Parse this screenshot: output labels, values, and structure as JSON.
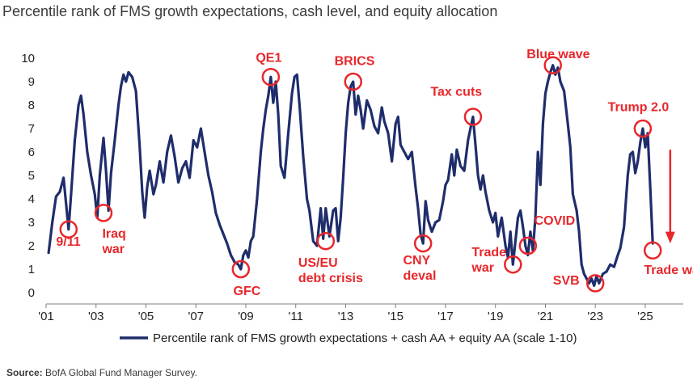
{
  "title": "Percentile rank of FMS growth expectations, cash level, and equity allocation",
  "source_label": "Source:",
  "source_text": " BofA Global Fund Manager Survey.",
  "colors": {
    "series": "#1f2d6b",
    "annotation": "#e8272b",
    "axis": "#7f7f7f"
  },
  "chart_data": {
    "type": "line",
    "ylim": [
      0,
      10
    ],
    "yticks": [
      "0",
      "1",
      "2",
      "3",
      "4",
      "5",
      "6",
      "7",
      "8",
      "9",
      "10"
    ],
    "xlim": [
      2001.0,
      2026.2
    ],
    "xticks": [
      {
        "label": "'01",
        "year": 2001
      },
      {
        "label": "'03",
        "year": 2003
      },
      {
        "label": "'05",
        "year": 2005
      },
      {
        "label": "'07",
        "year": 2007
      },
      {
        "label": "'09",
        "year": 2009
      },
      {
        "label": "'11",
        "year": 2011
      },
      {
        "label": "'13",
        "year": 2013
      },
      {
        "label": "'15",
        "year": 2015
      },
      {
        "label": "'17",
        "year": 2017
      },
      {
        "label": "'19",
        "year": 2019
      },
      {
        "label": "'21",
        "year": 2021
      },
      {
        "label": "'23",
        "year": 2023
      },
      {
        "label": "'25",
        "year": 2025
      }
    ],
    "series": [
      {
        "name": "Percentile rank of FMS growth expectations + cash AA + equity AA (scale 1-10)",
        "points": [
          [
            2001.1,
            1.7
          ],
          [
            2001.25,
            3.0
          ],
          [
            2001.4,
            4.1
          ],
          [
            2001.55,
            4.3
          ],
          [
            2001.7,
            4.9
          ],
          [
            2001.8,
            3.8
          ],
          [
            2001.9,
            2.7
          ],
          [
            2002.0,
            4.2
          ],
          [
            2002.15,
            6.5
          ],
          [
            2002.3,
            8.0
          ],
          [
            2002.4,
            8.4
          ],
          [
            2002.5,
            7.6
          ],
          [
            2002.65,
            6.0
          ],
          [
            2002.8,
            5.0
          ],
          [
            2002.95,
            4.2
          ],
          [
            2003.05,
            3.2
          ],
          [
            2003.15,
            5.0
          ],
          [
            2003.3,
            6.6
          ],
          [
            2003.4,
            5.2
          ],
          [
            2003.5,
            3.5
          ],
          [
            2003.6,
            5.1
          ],
          [
            2003.75,
            6.5
          ],
          [
            2003.9,
            8.0
          ],
          [
            2004.0,
            8.8
          ],
          [
            2004.1,
            9.3
          ],
          [
            2004.2,
            9.0
          ],
          [
            2004.3,
            9.4
          ],
          [
            2004.45,
            9.2
          ],
          [
            2004.6,
            8.6
          ],
          [
            2004.75,
            6.2
          ],
          [
            2004.85,
            4.3
          ],
          [
            2004.95,
            3.2
          ],
          [
            2005.05,
            4.5
          ],
          [
            2005.15,
            5.2
          ],
          [
            2005.3,
            4.2
          ],
          [
            2005.4,
            4.6
          ],
          [
            2005.55,
            5.6
          ],
          [
            2005.7,
            4.7
          ],
          [
            2005.85,
            6.0
          ],
          [
            2006.0,
            6.7
          ],
          [
            2006.15,
            5.8
          ],
          [
            2006.3,
            4.7
          ],
          [
            2006.45,
            5.3
          ],
          [
            2006.6,
            5.6
          ],
          [
            2006.75,
            4.9
          ],
          [
            2006.9,
            6.5
          ],
          [
            2007.05,
            6.2
          ],
          [
            2007.2,
            7.0
          ],
          [
            2007.35,
            6.0
          ],
          [
            2007.5,
            5.0
          ],
          [
            2007.65,
            4.3
          ],
          [
            2007.8,
            3.4
          ],
          [
            2007.95,
            2.9
          ],
          [
            2008.1,
            2.5
          ],
          [
            2008.25,
            2.1
          ],
          [
            2008.4,
            1.6
          ],
          [
            2008.55,
            1.3
          ],
          [
            2008.7,
            1.2
          ],
          [
            2008.8,
            1.0
          ],
          [
            2008.9,
            1.6
          ],
          [
            2009.0,
            1.8
          ],
          [
            2009.1,
            1.5
          ],
          [
            2009.2,
            2.2
          ],
          [
            2009.3,
            2.4
          ],
          [
            2009.45,
            4.0
          ],
          [
            2009.6,
            6.0
          ],
          [
            2009.7,
            7.0
          ],
          [
            2009.8,
            7.8
          ],
          [
            2009.9,
            8.4
          ],
          [
            2010.0,
            9.2
          ],
          [
            2010.1,
            8.1
          ],
          [
            2010.2,
            9.0
          ],
          [
            2010.3,
            7.6
          ],
          [
            2010.4,
            5.4
          ],
          [
            2010.55,
            4.9
          ],
          [
            2010.7,
            6.8
          ],
          [
            2010.85,
            8.5
          ],
          [
            2010.95,
            9.2
          ],
          [
            2011.05,
            9.3
          ],
          [
            2011.15,
            8.0
          ],
          [
            2011.3,
            5.8
          ],
          [
            2011.45,
            4.0
          ],
          [
            2011.55,
            3.5
          ],
          [
            2011.7,
            2.2
          ],
          [
            2011.85,
            2.0
          ],
          [
            2012.0,
            3.6
          ],
          [
            2012.1,
            2.3
          ],
          [
            2012.2,
            3.6
          ],
          [
            2012.35,
            2.4
          ],
          [
            2012.5,
            3.5
          ],
          [
            2012.6,
            3.6
          ],
          [
            2012.7,
            2.2
          ],
          [
            2012.8,
            3.2
          ],
          [
            2012.9,
            4.9
          ],
          [
            2013.0,
            6.8
          ],
          [
            2013.1,
            8.1
          ],
          [
            2013.2,
            8.8
          ],
          [
            2013.3,
            9.0
          ],
          [
            2013.4,
            7.6
          ],
          [
            2013.5,
            8.4
          ],
          [
            2013.6,
            7.8
          ],
          [
            2013.7,
            7.0
          ],
          [
            2013.85,
            8.2
          ],
          [
            2014.0,
            7.8
          ],
          [
            2014.15,
            7.1
          ],
          [
            2014.3,
            6.8
          ],
          [
            2014.45,
            7.9
          ],
          [
            2014.55,
            7.3
          ],
          [
            2014.7,
            6.8
          ],
          [
            2014.85,
            5.6
          ],
          [
            2015.0,
            7.2
          ],
          [
            2015.1,
            7.5
          ],
          [
            2015.2,
            6.3
          ],
          [
            2015.35,
            6.0
          ],
          [
            2015.5,
            5.7
          ],
          [
            2015.65,
            6.0
          ],
          [
            2015.8,
            4.5
          ],
          [
            2015.9,
            3.6
          ],
          [
            2016.0,
            2.5
          ],
          [
            2016.1,
            2.1
          ],
          [
            2016.2,
            3.9
          ],
          [
            2016.3,
            3.1
          ],
          [
            2016.45,
            2.6
          ],
          [
            2016.6,
            3.0
          ],
          [
            2016.75,
            3.1
          ],
          [
            2016.9,
            3.9
          ],
          [
            2017.0,
            4.6
          ],
          [
            2017.1,
            4.8
          ],
          [
            2017.25,
            5.9
          ],
          [
            2017.35,
            5.0
          ],
          [
            2017.45,
            6.1
          ],
          [
            2017.6,
            5.4
          ],
          [
            2017.75,
            5.2
          ],
          [
            2017.9,
            6.5
          ],
          [
            2018.0,
            7.0
          ],
          [
            2018.1,
            7.5
          ],
          [
            2018.2,
            6.3
          ],
          [
            2018.3,
            5.0
          ],
          [
            2018.4,
            4.4
          ],
          [
            2018.5,
            5.0
          ],
          [
            2018.6,
            4.3
          ],
          [
            2018.75,
            3.5
          ],
          [
            2018.9,
            3.0
          ],
          [
            2019.0,
            3.4
          ],
          [
            2019.1,
            2.4
          ],
          [
            2019.25,
            3.2
          ],
          [
            2019.4,
            2.0
          ],
          [
            2019.5,
            1.5
          ],
          [
            2019.6,
            2.6
          ],
          [
            2019.7,
            1.2
          ],
          [
            2019.8,
            2.2
          ],
          [
            2019.9,
            3.2
          ],
          [
            2020.0,
            3.5
          ],
          [
            2020.1,
            2.8
          ],
          [
            2020.2,
            2.0
          ],
          [
            2020.3,
            1.6
          ],
          [
            2020.4,
            2.6
          ],
          [
            2020.5,
            1.8
          ],
          [
            2020.6,
            3.2
          ],
          [
            2020.7,
            6.0
          ],
          [
            2020.8,
            4.6
          ],
          [
            2020.9,
            7.2
          ],
          [
            2021.0,
            8.5
          ],
          [
            2021.1,
            9.0
          ],
          [
            2021.2,
            9.4
          ],
          [
            2021.3,
            9.7
          ],
          [
            2021.4,
            9.3
          ],
          [
            2021.5,
            9.6
          ],
          [
            2021.6,
            9.0
          ],
          [
            2021.75,
            8.6
          ],
          [
            2021.9,
            7.2
          ],
          [
            2022.0,
            6.2
          ],
          [
            2022.1,
            4.2
          ],
          [
            2022.25,
            3.5
          ],
          [
            2022.35,
            2.6
          ],
          [
            2022.45,
            1.2
          ],
          [
            2022.55,
            0.8
          ],
          [
            2022.65,
            0.6
          ],
          [
            2022.75,
            0.4
          ],
          [
            2022.85,
            0.6
          ],
          [
            2022.95,
            0.3
          ],
          [
            2023.05,
            0.7
          ],
          [
            2023.15,
            0.4
          ],
          [
            2023.3,
            0.8
          ],
          [
            2023.45,
            0.9
          ],
          [
            2023.6,
            1.2
          ],
          [
            2023.75,
            1.1
          ],
          [
            2023.9,
            1.6
          ],
          [
            2024.0,
            1.9
          ],
          [
            2024.15,
            2.8
          ],
          [
            2024.3,
            5.0
          ],
          [
            2024.4,
            5.9
          ],
          [
            2024.5,
            6.0
          ],
          [
            2024.6,
            5.1
          ],
          [
            2024.7,
            5.6
          ],
          [
            2024.8,
            6.4
          ],
          [
            2024.9,
            7.0
          ],
          [
            2025.0,
            6.2
          ],
          [
            2025.1,
            6.8
          ],
          [
            2025.2,
            4.5
          ],
          [
            2025.3,
            2.1
          ]
        ]
      }
    ],
    "annotations": [
      {
        "label": "9/11",
        "x": 2001.9,
        "y": 2.7,
        "text_x": 2001.4,
        "text_y": 2.0,
        "anchor": "start",
        "lines": [
          "9/11"
        ]
      },
      {
        "label": "Iraq war",
        "x": 2003.3,
        "y": 3.4,
        "text_x": 2003.25,
        "text_y": 2.35,
        "anchor": "start",
        "lines": [
          "Iraq",
          "war"
        ]
      },
      {
        "label": "GFC",
        "x": 2008.8,
        "y": 1.0,
        "text_x": 2008.5,
        "text_y": -0.1,
        "anchor": "start",
        "lines": [
          "GFC"
        ]
      },
      {
        "label": "QE1",
        "x": 2010.0,
        "y": 9.2,
        "text_x": 2009.4,
        "text_y": 9.85,
        "anchor": "start",
        "lines": [
          "QE1"
        ]
      },
      {
        "label": "US/EU debt crisis",
        "x": 2012.2,
        "y": 2.2,
        "text_x": 2011.1,
        "text_y": 1.1,
        "anchor": "start",
        "lines": [
          "US/EU",
          "debt crisis"
        ]
      },
      {
        "label": "BRICS",
        "x": 2013.3,
        "y": 9.0,
        "text_x": 2012.55,
        "text_y": 9.7,
        "anchor": "start",
        "lines": [
          "BRICS"
        ]
      },
      {
        "label": "CNY deval",
        "x": 2016.1,
        "y": 2.1,
        "text_x": 2015.3,
        "text_y": 1.2,
        "anchor": "start",
        "lines": [
          "CNY",
          "deval"
        ]
      },
      {
        "label": "Tax cuts",
        "x": 2018.1,
        "y": 7.5,
        "text_x": 2016.4,
        "text_y": 8.4,
        "anchor": "start",
        "lines": [
          "Tax cuts"
        ]
      },
      {
        "label": "Trade war",
        "x": 2019.7,
        "y": 1.2,
        "text_x": 2018.05,
        "text_y": 1.55,
        "anchor": "start",
        "lines": [
          "Trade",
          "war"
        ]
      },
      {
        "label": "COVID",
        "x": 2020.3,
        "y": 2.0,
        "text_x": 2020.55,
        "text_y": 2.9,
        "anchor": "start",
        "lines": [
          "COVID"
        ]
      },
      {
        "label": "Blue wave",
        "x": 2021.3,
        "y": 9.7,
        "text_x": 2020.25,
        "text_y": 10.0,
        "anchor": "start",
        "lines": [
          "Blue wave"
        ]
      },
      {
        "label": "SVB",
        "x": 2023.0,
        "y": 0.4,
        "text_x": 2021.3,
        "text_y": 0.35,
        "anchor": "start",
        "lines": [
          "SVB"
        ]
      },
      {
        "label": "Trump 2.0",
        "x": 2024.9,
        "y": 7.0,
        "text_x": 2023.5,
        "text_y": 7.75,
        "anchor": "start",
        "lines": [
          "Trump 2.0"
        ]
      },
      {
        "label": "Trade war",
        "x": 2025.3,
        "y": 1.8,
        "text_x": 2024.95,
        "text_y": 0.8,
        "anchor": "start",
        "lines": [
          "Trade war"
        ]
      }
    ],
    "grid": false,
    "legend_position": "bottom"
  }
}
